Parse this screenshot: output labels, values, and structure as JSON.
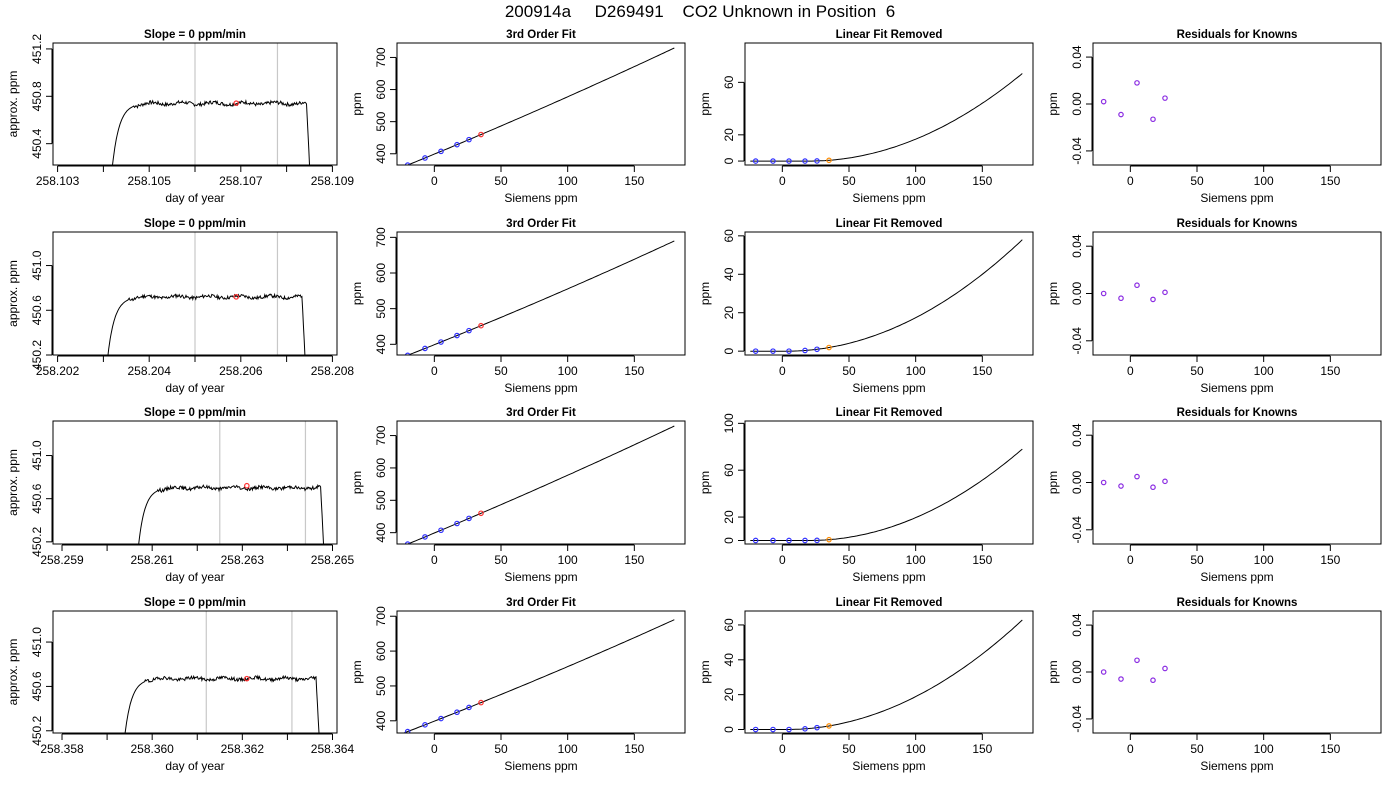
{
  "title": "200914a     D269491    CO2 Unknown in Position  6",
  "colors": {
    "trace": "#000000",
    "highlight": "#ff3030",
    "known": "#3030ff",
    "residual": "#8a2be2",
    "unknown": "#ff8c00",
    "guide": "#c8c8c8"
  },
  "chart_data": [
    {
      "row": 1,
      "type": "line",
      "title": "Slope =  0  ppm/min",
      "xlabel": "day of year",
      "ylabel": "approx. ppm",
      "xlim": [
        258.1029,
        258.1091
      ],
      "ylim": [
        450.22,
        451.25
      ],
      "xticks": [
        "258.103",
        "258.105",
        "258.107",
        "258.109"
      ],
      "xminor": [
        258.104,
        258.106,
        258.108
      ],
      "yticks": [
        "450.4",
        "450.8",
        "451.2"
      ],
      "guides": [
        258.106,
        258.1078
      ],
      "highlight": [
        258.1069,
        450.742
      ],
      "trace": {
        "x0": 258.1042,
        "x1": 258.1085,
        "plateau": 450.74,
        "start": 450.22,
        "end": 450.22
      }
    },
    {
      "row": 1,
      "type": "line",
      "title": "3rd Order Fit",
      "xlabel": "Siemens ppm",
      "ylabel": "ppm",
      "xlim": [
        -28,
        188
      ],
      "ylim": [
        365,
        745
      ],
      "xticks": [
        "0",
        "50",
        "100",
        "150"
      ],
      "yticks": [
        "400",
        "500",
        "600",
        "700"
      ],
      "known_x": [
        -20,
        -7,
        5,
        17,
        26
      ],
      "unknown_x": 35,
      "curve": {
        "a": 398.9,
        "b": 1.72,
        "c": 0.00065
      }
    },
    {
      "row": 1,
      "type": "line",
      "title": "Linear Fit Removed",
      "xlabel": "Siemens ppm",
      "ylabel": "ppm",
      "xlim": [
        -28,
        188
      ],
      "ylim": [
        -3,
        90
      ],
      "xticks": [
        "0",
        "50",
        "100",
        "150"
      ],
      "yticks": [
        "0",
        "20",
        "60"
      ],
      "known_x": [
        -20,
        -7,
        5,
        17,
        26
      ],
      "unknown_x": 35,
      "curve": {
        "a": 0.002608,
        "v": 20,
        "c": 0
      }
    },
    {
      "row": 1,
      "type": "scatter",
      "title": "Residuals for Knowns",
      "xlabel": "Siemens ppm",
      "ylabel": "ppm",
      "xlim": [
        -28,
        188
      ],
      "ylim": [
        -0.052,
        0.052
      ],
      "xticks": [
        "0",
        "50",
        "100",
        "150"
      ],
      "yticks": [
        "-0.04",
        "0.00",
        "0.04"
      ],
      "x": [
        -20,
        -7,
        5,
        17,
        26
      ],
      "y": [
        0.002,
        -0.009,
        0.018,
        -0.013,
        0.005
      ]
    },
    {
      "row": 2,
      "type": "line",
      "title": "Slope =  0  ppm/min",
      "xlabel": "day of year",
      "ylabel": "approx. ppm",
      "xlim": [
        258.2019,
        258.2081
      ],
      "ylim": [
        450.2,
        451.3
      ],
      "xticks": [
        "258.202",
        "258.204",
        "258.206",
        "258.208"
      ],
      "xminor": [
        258.203,
        258.205,
        258.207
      ],
      "yticks": [
        "450.2",
        "450.6",
        "451.0"
      ],
      "guides": [
        258.205,
        258.2068
      ],
      "highlight": [
        258.2059,
        450.72
      ],
      "trace": {
        "x0": 258.2031,
        "x1": 258.2074,
        "plateau": 450.72,
        "start": 450.2,
        "end": 450.2
      }
    },
    {
      "row": 2,
      "type": "line",
      "title": "3rd Order Fit",
      "xlabel": "Siemens ppm",
      "ylabel": "ppm",
      "xlim": [
        -28,
        188
      ],
      "ylim": [
        370,
        715
      ],
      "xticks": [
        "0",
        "50",
        "100",
        "150"
      ],
      "yticks": [
        "400",
        "500",
        "600",
        "700"
      ],
      "known_x": [
        -20,
        -7,
        5,
        17,
        26
      ],
      "unknown_x": 35,
      "curve": {
        "a": 398.9,
        "b": 1.5,
        "c": 0.00065
      }
    },
    {
      "row": 2,
      "type": "line",
      "title": "Linear Fit Removed",
      "xlabel": "Siemens ppm",
      "ylabel": "ppm",
      "xlim": [
        -28,
        188
      ],
      "ylim": [
        -2,
        62
      ],
      "xticks": [
        "0",
        "50",
        "100",
        "150"
      ],
      "yticks": [
        "0",
        "20",
        "40",
        "60"
      ],
      "known_x": [
        -20,
        -7,
        5,
        17,
        26
      ],
      "unknown_x": 35,
      "curve": {
        "a": 0.001851,
        "v": 3,
        "c": 0
      }
    },
    {
      "row": 2,
      "type": "scatter",
      "title": "Residuals for Knowns",
      "xlabel": "Siemens ppm",
      "ylabel": "ppm",
      "xlim": [
        -28,
        188
      ],
      "ylim": [
        -0.052,
        0.052
      ],
      "xticks": [
        "0",
        "50",
        "100",
        "150"
      ],
      "yticks": [
        "-0.04",
        "0.00",
        "0.04"
      ],
      "x": [
        -20,
        -7,
        5,
        17,
        26
      ],
      "y": [
        0.0,
        -0.004,
        0.007,
        -0.005,
        0.001
      ]
    },
    {
      "row": 3,
      "type": "line",
      "title": "Slope =  0  ppm/min",
      "xlabel": "day of year",
      "ylabel": "approx. ppm",
      "xlim": [
        258.2588,
        258.2651
      ],
      "ylim": [
        450.18,
        451.32
      ],
      "xticks": [
        "258.259",
        "258.261",
        "258.263",
        "258.265"
      ],
      "xminor": [
        258.26,
        258.262,
        258.264
      ],
      "yticks": [
        "450.2",
        "450.6",
        "451.0"
      ],
      "guides": [
        258.2625,
        258.2644
      ],
      "highlight": [
        258.2631,
        450.72
      ],
      "trace": {
        "x0": 258.2607,
        "x1": 258.2648,
        "plateau": 450.7,
        "start": 450.18,
        "end": 450.18
      }
    },
    {
      "row": 3,
      "type": "line",
      "title": "3rd Order Fit",
      "xlabel": "Siemens ppm",
      "ylabel": "ppm",
      "xlim": [
        -28,
        188
      ],
      "ylim": [
        365,
        745
      ],
      "xticks": [
        "0",
        "50",
        "100",
        "150"
      ],
      "yticks": [
        "400",
        "500",
        "600",
        "700"
      ],
      "known_x": [
        -20,
        -7,
        5,
        17,
        26
      ],
      "unknown_x": 35,
      "curve": {
        "a": 398.9,
        "b": 1.72,
        "c": 0.00065
      }
    },
    {
      "row": 3,
      "type": "line",
      "title": "Linear Fit Removed",
      "xlabel": "Siemens ppm",
      "ylabel": "ppm",
      "xlim": [
        -28,
        188
      ],
      "ylim": [
        -3,
        102
      ],
      "xticks": [
        "0",
        "50",
        "100",
        "150"
      ],
      "yticks": [
        "0",
        "20",
        "60",
        "100"
      ],
      "known_x": [
        -20,
        -7,
        5,
        17,
        26
      ],
      "unknown_x": 35,
      "curve": {
        "a": 0.003049,
        "v": 20,
        "c": 0
      }
    },
    {
      "row": 3,
      "type": "scatter",
      "title": "Residuals for Knowns",
      "xlabel": "Siemens ppm",
      "ylabel": "ppm",
      "xlim": [
        -28,
        188
      ],
      "ylim": [
        -0.052,
        0.052
      ],
      "xticks": [
        "0",
        "50",
        "100",
        "150"
      ],
      "yticks": [
        "-0.04",
        "0.00",
        "0.04"
      ],
      "x": [
        -20,
        -7,
        5,
        17,
        26
      ],
      "y": [
        0.0,
        -0.003,
        0.005,
        -0.004,
        0.001
      ]
    },
    {
      "row": 4,
      "type": "line",
      "title": "Slope =  0  ppm/min",
      "xlabel": "day of year",
      "ylabel": "approx. ppm",
      "xlim": [
        258.3578,
        258.3641
      ],
      "ylim": [
        450.18,
        451.28
      ],
      "xticks": [
        "258.358",
        "258.360",
        "258.362",
        "258.364"
      ],
      "xminor": [
        258.359,
        258.361,
        258.363
      ],
      "yticks": [
        "450.2",
        "450.6",
        "451.0"
      ],
      "guides": [
        258.3612,
        258.3631
      ],
      "highlight": [
        258.3621,
        450.67
      ],
      "trace": {
        "x0": 258.3594,
        "x1": 258.3637,
        "plateau": 450.67,
        "start": 450.18,
        "end": 450.18
      }
    },
    {
      "row": 4,
      "type": "line",
      "title": "3rd Order Fit",
      "xlabel": "Siemens ppm",
      "ylabel": "ppm",
      "xlim": [
        -28,
        188
      ],
      "ylim": [
        365,
        715
      ],
      "xticks": [
        "0",
        "50",
        "100",
        "150"
      ],
      "yticks": [
        "400",
        "500",
        "600",
        "700"
      ],
      "known_x": [
        -20,
        -7,
        5,
        17,
        26
      ],
      "unknown_x": 35,
      "curve": {
        "a": 398.9,
        "b": 1.5,
        "c": 0.00065
      }
    },
    {
      "row": 4,
      "type": "line",
      "title": "Linear Fit Removed",
      "xlabel": "Siemens ppm",
      "ylabel": "ppm",
      "xlim": [
        -28,
        188
      ],
      "ylim": [
        -2,
        68
      ],
      "xticks": [
        "0",
        "50",
        "100",
        "150"
      ],
      "yticks": [
        "0",
        "20",
        "40",
        "60"
      ],
      "known_x": [
        -20,
        -7,
        5,
        17,
        26
      ],
      "unknown_x": 35,
      "curve": {
        "a": 0.002006,
        "v": 3,
        "c": 0
      }
    },
    {
      "row": 4,
      "type": "scatter",
      "title": "Residuals for Knowns",
      "xlabel": "Siemens ppm",
      "ylabel": "ppm",
      "xlim": [
        -28,
        188
      ],
      "ylim": [
        -0.052,
        0.052
      ],
      "xticks": [
        "0",
        "50",
        "100",
        "150"
      ],
      "yticks": [
        "-0.04",
        "0.00",
        "0.04"
      ],
      "x": [
        -20,
        -7,
        5,
        17,
        26
      ],
      "y": [
        0.0,
        -0.006,
        0.01,
        -0.007,
        0.003
      ]
    }
  ]
}
